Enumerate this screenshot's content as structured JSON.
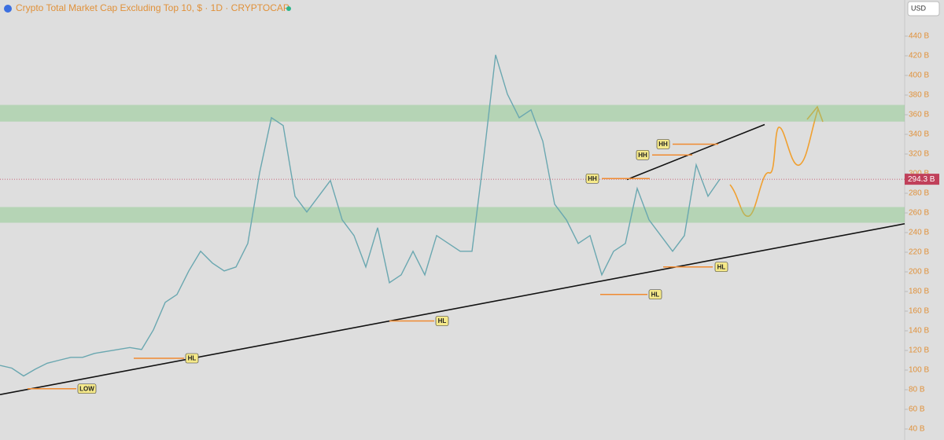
{
  "header": {
    "title": "Crypto Total Market Cap Excluding Top 10, $ · 1D · CRYPTOCAP",
    "currency": "USD"
  },
  "chart_data": {
    "type": "line",
    "color": "#6aa7b0",
    "values": [
      104.8,
      102,
      94,
      101,
      107,
      110,
      113,
      113,
      117,
      119,
      121,
      123,
      121,
      141,
      169,
      177,
      201,
      221,
      209,
      201,
      205,
      229,
      301,
      357,
      349,
      277,
      261,
      277,
      293,
      253,
      237,
      205,
      245,
      189,
      197,
      221,
      197,
      237,
      229,
      221,
      221,
      317,
      421,
      381,
      357,
      365,
      333,
      269,
      253,
      229,
      237,
      197,
      221,
      229,
      285,
      253,
      237,
      221,
      237,
      309,
      277,
      294.3
    ],
    "ylim": [
      28.8,
      476.8
    ],
    "yticks": [
      {
        "value": 40,
        "label": "40 B"
      },
      {
        "value": 60,
        "label": "60 B"
      },
      {
        "value": 80,
        "label": "80 B"
      },
      {
        "value": 100,
        "label": "100 B"
      },
      {
        "value": 120,
        "label": "120 B"
      },
      {
        "value": 140,
        "label": "140 B"
      },
      {
        "value": 160,
        "label": "160 B"
      },
      {
        "value": 180,
        "label": "180 B"
      },
      {
        "value": 200,
        "label": "200 B"
      },
      {
        "value": 220,
        "label": "220 B"
      },
      {
        "value": 240,
        "label": "240 B"
      },
      {
        "value": 260,
        "label": "260 B"
      },
      {
        "value": 280,
        "label": "280 B"
      },
      {
        "value": 300,
        "label": "300 B"
      },
      {
        "value": 320,
        "label": "320 B"
      },
      {
        "value": 340,
        "label": "340 B"
      },
      {
        "value": 360,
        "label": "360 B"
      },
      {
        "value": 380,
        "label": "380 B"
      },
      {
        "value": 400,
        "label": "400 B"
      },
      {
        "value": 420,
        "label": "420 B"
      },
      {
        "value": 440,
        "label": "440 B"
      }
    ],
    "last_price": {
      "value": 294.3,
      "label": "294.3 B"
    },
    "zones": [
      {
        "from": 250,
        "to": 266
      },
      {
        "from": 353,
        "to": 370
      }
    ],
    "trendlines": [
      {
        "from": 75,
        "to": 249
      },
      {
        "from": 294,
        "to": 350
      }
    ],
    "levels": [
      {
        "text": "LOW",
        "value": 81
      },
      {
        "text": "HL",
        "value": 112
      },
      {
        "text": "HL",
        "value": 150
      },
      {
        "text": "HL",
        "value": 177
      },
      {
        "text": "HL",
        "value": 205
      },
      {
        "text": "HH",
        "value": 295
      },
      {
        "text": "HH",
        "value": 319
      },
      {
        "text": "HH",
        "value": 330
      }
    ]
  }
}
